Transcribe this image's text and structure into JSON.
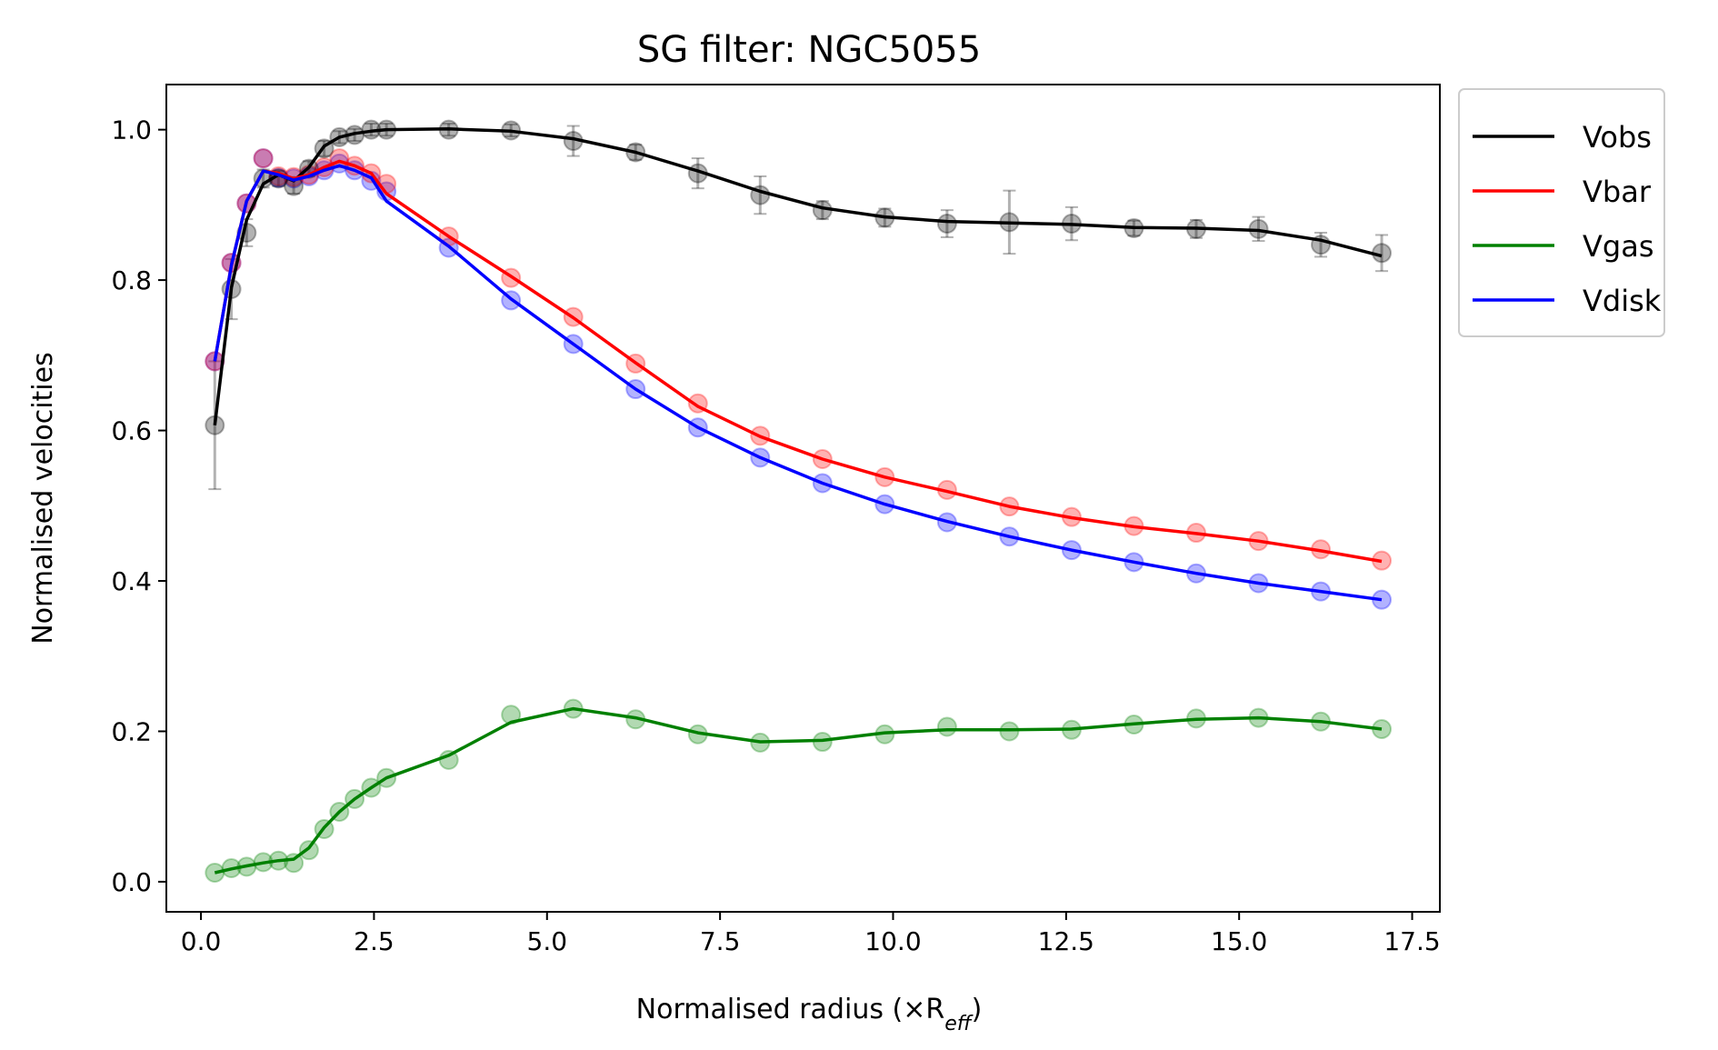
{
  "chart_data": {
    "type": "line",
    "title": "SG filter: NGC5055",
    "xlabel": "Normalised radius (×R",
    "xlabel_sub": "eff",
    "xlabel_close": ")",
    "ylabel": "Normalised velocities",
    "xlim": [
      -0.5,
      17.9
    ],
    "ylim": [
      -0.04,
      1.06
    ],
    "xticks": [
      0.0,
      2.5,
      5.0,
      7.5,
      10.0,
      12.5,
      15.0,
      17.5
    ],
    "xtick_labels": [
      "0.0",
      "2.5",
      "5.0",
      "7.5",
      "10.0",
      "12.5",
      "15.0",
      "17.5"
    ],
    "yticks": [
      0.0,
      0.2,
      0.4,
      0.6,
      0.8,
      1.0
    ],
    "ytick_labels": [
      "0.0",
      "0.2",
      "0.4",
      "0.6",
      "0.8",
      "1.0"
    ],
    "grid": false,
    "legend_position": "outside-top-right",
    "x": [
      0.2,
      0.44,
      0.66,
      0.9,
      1.12,
      1.34,
      1.56,
      1.78,
      2.0,
      2.22,
      2.46,
      2.68,
      3.58,
      4.48,
      5.38,
      6.28,
      7.18,
      8.08,
      8.98,
      9.88,
      10.78,
      11.68,
      12.58,
      13.48,
      14.38,
      15.28,
      16.18,
      17.06
    ],
    "series": [
      {
        "name": "Vobs",
        "color": "#000000",
        "points": [
          0.607,
          0.788,
          0.863,
          0.935,
          0.935,
          0.925,
          0.948,
          0.975,
          0.99,
          0.993,
          1.0,
          1.0,
          1.0,
          0.999,
          0.985,
          0.97,
          0.942,
          0.913,
          0.893,
          0.883,
          0.875,
          0.877,
          0.875,
          0.869,
          0.868,
          0.868,
          0.847,
          0.836
        ],
        "errors": [
          0.085,
          0.04,
          0.018,
          0.012,
          0.01,
          0.01,
          0.01,
          0.01,
          0.008,
          0.008,
          0.008,
          0.008,
          0.008,
          0.008,
          0.02,
          0.01,
          0.02,
          0.025,
          0.012,
          0.012,
          0.018,
          0.042,
          0.022,
          0.01,
          0.012,
          0.016,
          0.016,
          0.024
        ],
        "smooth": [
          0.607,
          0.79,
          0.88,
          0.928,
          0.94,
          0.932,
          0.95,
          0.978,
          0.99,
          0.995,
          0.998,
          1.0,
          1.001,
          0.998,
          0.988,
          0.97,
          0.945,
          0.918,
          0.896,
          0.884,
          0.878,
          0.876,
          0.874,
          0.87,
          0.869,
          0.866,
          0.853,
          0.832
        ]
      },
      {
        "name": "Vbar",
        "color": "#ff0000",
        "points": [
          0.692,
          0.823,
          0.902,
          0.962,
          0.938,
          0.937,
          0.94,
          0.95,
          0.962,
          0.952,
          0.942,
          0.928,
          0.858,
          0.803,
          0.751,
          0.689,
          0.636,
          0.593,
          0.562,
          0.538,
          0.521,
          0.499,
          0.485,
          0.473,
          0.464,
          0.453,
          0.442,
          0.427
        ],
        "smooth": [
          0.692,
          0.82,
          0.905,
          0.945,
          0.942,
          0.935,
          0.94,
          0.95,
          0.958,
          0.952,
          0.942,
          0.915,
          0.858,
          0.805,
          0.75,
          0.69,
          0.632,
          0.592,
          0.562,
          0.538,
          0.519,
          0.499,
          0.484,
          0.472,
          0.463,
          0.453,
          0.44,
          0.426
        ]
      },
      {
        "name": "Vgas",
        "color": "#008000",
        "points": [
          0.012,
          0.018,
          0.02,
          0.026,
          0.028,
          0.025,
          0.042,
          0.07,
          0.093,
          0.11,
          0.125,
          0.138,
          0.162,
          0.222,
          0.23,
          0.216,
          0.196,
          0.185,
          0.186,
          0.196,
          0.206,
          0.2,
          0.202,
          0.209,
          0.217,
          0.218,
          0.213,
          0.203
        ],
        "smooth": [
          0.012,
          0.017,
          0.021,
          0.025,
          0.028,
          0.03,
          0.045,
          0.072,
          0.093,
          0.11,
          0.125,
          0.138,
          0.168,
          0.212,
          0.23,
          0.218,
          0.198,
          0.186,
          0.188,
          0.198,
          0.202,
          0.202,
          0.203,
          0.21,
          0.216,
          0.218,
          0.213,
          0.203
        ]
      },
      {
        "name": "Vdisk",
        "color": "#0000ff",
        "points": [
          0.692,
          0.823,
          0.902,
          0.962,
          0.936,
          0.935,
          0.938,
          0.946,
          0.955,
          0.946,
          0.932,
          0.918,
          0.843,
          0.773,
          0.715,
          0.655,
          0.604,
          0.564,
          0.53,
          0.502,
          0.478,
          0.459,
          0.441,
          0.425,
          0.41,
          0.397,
          0.386,
          0.375
        ],
        "smooth": [
          0.692,
          0.82,
          0.905,
          0.945,
          0.94,
          0.933,
          0.938,
          0.946,
          0.952,
          0.946,
          0.936,
          0.905,
          0.845,
          0.775,
          0.715,
          0.655,
          0.604,
          0.564,
          0.53,
          0.502,
          0.479,
          0.459,
          0.441,
          0.425,
          0.41,
          0.397,
          0.386,
          0.375
        ]
      }
    ]
  }
}
